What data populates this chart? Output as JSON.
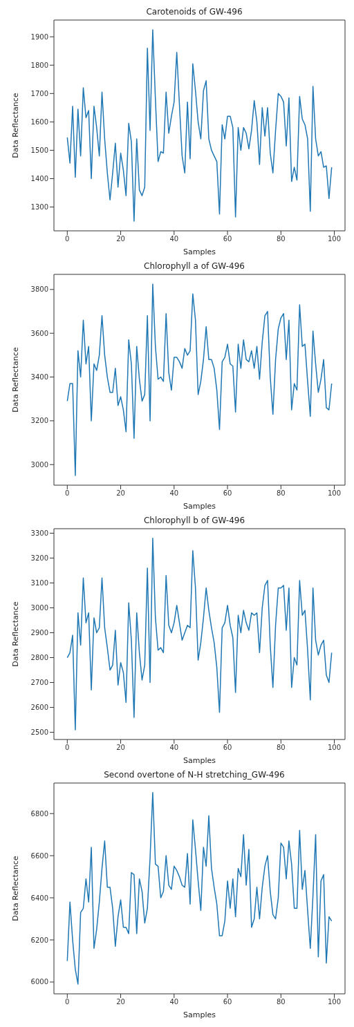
{
  "chart_data": [
    {
      "type": "line",
      "title": "Carotenoids of GW-496",
      "xlabel": "Samples",
      "ylabel": "Data Reflectance",
      "color": "#1f77b4",
      "xlim": [
        -5,
        104
      ],
      "xticks": [
        0,
        20,
        40,
        60,
        80,
        100
      ],
      "ylim": [
        1216,
        1959
      ],
      "yticks": [
        1300,
        1400,
        1500,
        1600,
        1700,
        1800,
        1900
      ],
      "x": [
        0,
        1,
        2,
        3,
        4,
        5,
        6,
        7,
        8,
        9,
        10,
        11,
        12,
        13,
        14,
        15,
        16,
        17,
        18,
        19,
        20,
        21,
        22,
        23,
        24,
        25,
        26,
        27,
        28,
        29,
        30,
        31,
        32,
        33,
        34,
        35,
        36,
        37,
        38,
        39,
        40,
        41,
        42,
        43,
        44,
        45,
        46,
        47,
        48,
        49,
        50,
        51,
        52,
        53,
        54,
        55,
        56,
        57,
        58,
        59,
        60,
        61,
        62,
        63,
        64,
        65,
        66,
        67,
        68,
        69,
        70,
        71,
        72,
        73,
        74,
        75,
        76,
        77,
        78,
        79,
        80,
        81,
        82,
        83,
        84,
        85,
        86,
        87,
        88,
        89,
        90,
        91,
        92,
        93,
        94,
        95,
        96,
        97,
        98,
        99
      ],
      "values": [
        1545,
        1455,
        1655,
        1405,
        1645,
        1480,
        1720,
        1615,
        1640,
        1400,
        1655,
        1580,
        1480,
        1705,
        1540,
        1420,
        1325,
        1420,
        1525,
        1370,
        1490,
        1430,
        1340,
        1595,
        1530,
        1250,
        1540,
        1360,
        1340,
        1370,
        1860,
        1570,
        1925,
        1680,
        1460,
        1495,
        1490,
        1705,
        1560,
        1620,
        1670,
        1845,
        1660,
        1480,
        1420,
        1670,
        1470,
        1805,
        1710,
        1600,
        1540,
        1710,
        1745,
        1540,
        1500,
        1480,
        1460,
        1275,
        1590,
        1540,
        1620,
        1620,
        1580,
        1265,
        1580,
        1500,
        1580,
        1560,
        1505,
        1570,
        1675,
        1600,
        1450,
        1650,
        1550,
        1650,
        1490,
        1420,
        1570,
        1700,
        1690,
        1670,
        1515,
        1685,
        1390,
        1440,
        1395,
        1690,
        1610,
        1590,
        1540,
        1285,
        1725,
        1540,
        1480,
        1495,
        1440,
        1445,
        1330,
        1440
      ]
    },
    {
      "type": "line",
      "title": "Chlorophyll a of GW-496",
      "xlabel": "Samples",
      "ylabel": "Data Reflectance",
      "color": "#1f77b4",
      "xlim": [
        -5,
        104
      ],
      "xticks": [
        0,
        20,
        40,
        60,
        80,
        100
      ],
      "ylim": [
        2906,
        3869
      ],
      "yticks": [
        3000,
        3200,
        3400,
        3600,
        3800
      ],
      "x": [
        0,
        1,
        2,
        3,
        4,
        5,
        6,
        7,
        8,
        9,
        10,
        11,
        12,
        13,
        14,
        15,
        16,
        17,
        18,
        19,
        20,
        21,
        22,
        23,
        24,
        25,
        26,
        27,
        28,
        29,
        30,
        31,
        32,
        33,
        34,
        35,
        36,
        37,
        38,
        39,
        40,
        41,
        42,
        43,
        44,
        45,
        46,
        47,
        48,
        49,
        50,
        51,
        52,
        53,
        54,
        55,
        56,
        57,
        58,
        59,
        60,
        61,
        62,
        63,
        64,
        65,
        66,
        67,
        68,
        69,
        70,
        71,
        72,
        73,
        74,
        75,
        76,
        77,
        78,
        79,
        80,
        81,
        82,
        83,
        84,
        85,
        86,
        87,
        88,
        89,
        90,
        91,
        92,
        93,
        94,
        95,
        96,
        97,
        98,
        99
      ],
      "values": [
        3290,
        3370,
        3370,
        2950,
        3520,
        3400,
        3660,
        3460,
        3540,
        3200,
        3460,
        3430,
        3500,
        3680,
        3500,
        3400,
        3330,
        3330,
        3440,
        3270,
        3310,
        3250,
        3150,
        3570,
        3460,
        3120,
        3540,
        3390,
        3290,
        3320,
        3680,
        3200,
        3825,
        3540,
        3390,
        3400,
        3380,
        3690,
        3420,
        3340,
        3490,
        3490,
        3470,
        3440,
        3530,
        3500,
        3520,
        3780,
        3660,
        3320,
        3380,
        3480,
        3630,
        3480,
        3480,
        3440,
        3340,
        3160,
        3470,
        3490,
        3550,
        3460,
        3450,
        3240,
        3550,
        3440,
        3570,
        3480,
        3470,
        3520,
        3440,
        3540,
        3390,
        3560,
        3680,
        3700,
        3400,
        3230,
        3480,
        3620,
        3670,
        3690,
        3480,
        3660,
        3250,
        3370,
        3340,
        3730,
        3540,
        3550,
        3380,
        3220,
        3610,
        3460,
        3330,
        3390,
        3480,
        3260,
        3250,
        3370
      ]
    },
    {
      "type": "line",
      "title": "Chlorophyll b of GW-496",
      "xlabel": "Samples",
      "ylabel": "Data Reflectance",
      "color": "#1f77b4",
      "xlim": [
        -5,
        104
      ],
      "xticks": [
        0,
        20,
        40,
        60,
        80,
        100
      ],
      "ylim": [
        2471,
        3318
      ],
      "yticks": [
        2500,
        2600,
        2700,
        2800,
        2900,
        3000,
        3100,
        3200,
        3300
      ],
      "x": [
        0,
        1,
        2,
        3,
        4,
        5,
        6,
        7,
        8,
        9,
        10,
        11,
        12,
        13,
        14,
        15,
        16,
        17,
        18,
        19,
        20,
        21,
        22,
        23,
        24,
        25,
        26,
        27,
        28,
        29,
        30,
        31,
        32,
        33,
        34,
        35,
        36,
        37,
        38,
        39,
        40,
        41,
        42,
        43,
        44,
        45,
        46,
        47,
        48,
        49,
        50,
        51,
        52,
        53,
        54,
        55,
        56,
        57,
        58,
        59,
        60,
        61,
        62,
        63,
        64,
        65,
        66,
        67,
        68,
        69,
        70,
        71,
        72,
        73,
        74,
        75,
        76,
        77,
        78,
        79,
        80,
        81,
        82,
        83,
        84,
        85,
        86,
        87,
        88,
        89,
        90,
        91,
        92,
        93,
        94,
        95,
        96,
        97,
        98,
        99
      ],
      "values": [
        2800,
        2820,
        2890,
        2510,
        2980,
        2850,
        3120,
        2940,
        2980,
        2670,
        2960,
        2900,
        2920,
        3120,
        2920,
        2840,
        2750,
        2770,
        2910,
        2690,
        2780,
        2740,
        2620,
        3020,
        2870,
        2560,
        2980,
        2820,
        2710,
        2770,
        3160,
        2700,
        3280,
        2960,
        2830,
        2840,
        2820,
        3130,
        2930,
        2900,
        2940,
        3010,
        2940,
        2870,
        2900,
        2930,
        2920,
        3230,
        3080,
        2790,
        2860,
        2960,
        3080,
        2990,
        2920,
        2860,
        2760,
        2580,
        2920,
        2940,
        3010,
        2930,
        2880,
        2660,
        2970,
        2900,
        2990,
        2940,
        2910,
        2980,
        2970,
        2980,
        2820,
        3000,
        3090,
        3110,
        2850,
        2680,
        2930,
        3080,
        3080,
        3090,
        2910,
        3080,
        2680,
        2800,
        2770,
        3110,
        2970,
        2990,
        2830,
        2630,
        3080,
        2870,
        2810,
        2850,
        2870,
        2730,
        2700,
        2820
      ]
    },
    {
      "type": "line",
      "title": "Second overtone of N-H stretching_GW-496",
      "xlabel": "Samples",
      "ylabel": "Data Reflectance",
      "color": "#1f77b4",
      "xlim": [
        -5,
        104
      ],
      "xticks": [
        0,
        20,
        40,
        60,
        80,
        100
      ],
      "ylim": [
        5944,
        6945
      ],
      "yticks": [
        6000,
        6200,
        6400,
        6600,
        6800
      ],
      "x": [
        0,
        1,
        2,
        3,
        4,
        5,
        6,
        7,
        8,
        9,
        10,
        11,
        12,
        13,
        14,
        15,
        16,
        17,
        18,
        19,
        20,
        21,
        22,
        23,
        24,
        25,
        26,
        27,
        28,
        29,
        30,
        31,
        32,
        33,
        34,
        35,
        36,
        37,
        38,
        39,
        40,
        41,
        42,
        43,
        44,
        45,
        46,
        47,
        48,
        49,
        50,
        51,
        52,
        53,
        54,
        55,
        56,
        57,
        58,
        59,
        60,
        61,
        62,
        63,
        64,
        65,
        66,
        67,
        68,
        69,
        70,
        71,
        72,
        73,
        74,
        75,
        76,
        77,
        78,
        79,
        80,
        81,
        82,
        83,
        84,
        85,
        86,
        87,
        88,
        89,
        90,
        91,
        92,
        93,
        94,
        95,
        96,
        97,
        98,
        99
      ],
      "values": [
        6100,
        6380,
        6200,
        6060,
        5990,
        6330,
        6350,
        6490,
        6380,
        6640,
        6160,
        6250,
        6380,
        6540,
        6670,
        6450,
        6450,
        6350,
        6170,
        6310,
        6390,
        6260,
        6260,
        6230,
        6520,
        6510,
        6230,
        6490,
        6430,
        6280,
        6350,
        6590,
        6900,
        6560,
        6550,
        6400,
        6430,
        6600,
        6460,
        6440,
        6550,
        6530,
        6500,
        6460,
        6450,
        6610,
        6370,
        6770,
        6630,
        6480,
        6340,
        6640,
        6550,
        6790,
        6540,
        6450,
        6370,
        6220,
        6220,
        6290,
        6480,
        6350,
        6490,
        6310,
        6540,
        6500,
        6700,
        6460,
        6630,
        6260,
        6300,
        6450,
        6300,
        6450,
        6550,
        6600,
        6430,
        6320,
        6300,
        6400,
        6660,
        6640,
        6490,
        6670,
        6560,
        6350,
        6350,
        6720,
        6440,
        6530,
        6340,
        6160,
        6410,
        6700,
        6120,
        6480,
        6510,
        6090,
        6310,
        6290
      ]
    }
  ]
}
